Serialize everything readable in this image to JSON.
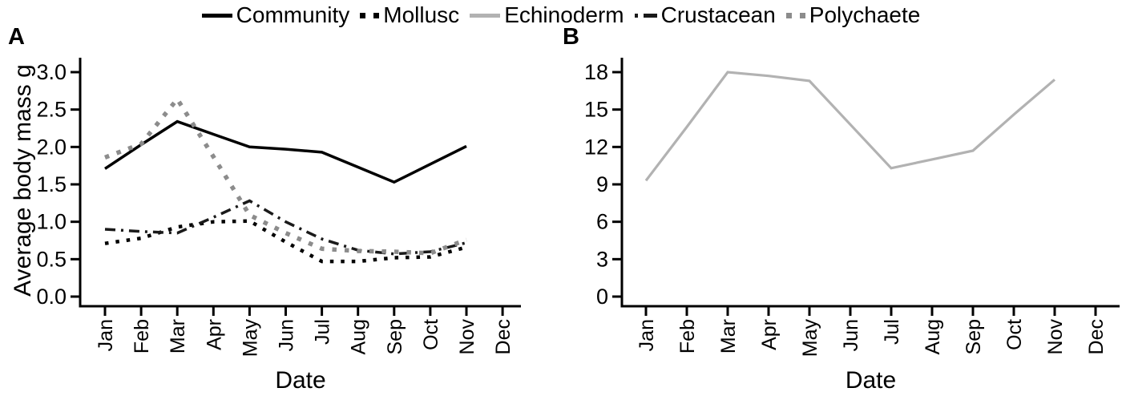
{
  "figure": {
    "legend": [
      {
        "id": "community",
        "label": "Community",
        "color": "#000000",
        "line_style": "solid"
      },
      {
        "id": "mollusc",
        "label": "Mollusc",
        "color": "#000000",
        "line_style": "dotted"
      },
      {
        "id": "echinoderm",
        "label": "Echinoderm",
        "color": "#b2b2b2",
        "line_style": "solid"
      },
      {
        "id": "crustacean",
        "label": "Crustacean",
        "color": "#1a1a1a",
        "line_style": "dashdot"
      },
      {
        "id": "polychaete",
        "label": "Polychaete",
        "color": "#8c8c8c",
        "line_style": "dotted"
      }
    ]
  },
  "chart_data": [
    {
      "panel": "A",
      "type": "line",
      "ylabel": "Average body mass g",
      "xlabel": "Date",
      "categories": [
        "Jan",
        "Feb",
        "Mar",
        "Apr",
        "May",
        "Jun",
        "Jul",
        "Aug",
        "Sep",
        "Oct",
        "Nov",
        "Dec"
      ],
      "yticks": [
        {
          "label": "0.0",
          "value": 0.0
        },
        {
          "label": "0.5",
          "value": 0.5
        },
        {
          "label": "1.0",
          "value": 1.0
        },
        {
          "label": "1.5",
          "value": 1.5
        },
        {
          "label": "2.0",
          "value": 2.0
        },
        {
          "label": "2.5",
          "value": 2.5
        },
        {
          "label": "3.0",
          "value": 3.0
        }
      ],
      "ylim": [
        0,
        3.0
      ],
      "grid": false,
      "legend_position": "top",
      "series": [
        {
          "id": "community",
          "name": "Community",
          "color": "#000000",
          "line_style": "solid",
          "values": [
            1.71,
            2.03,
            2.34,
            2.17,
            2.0,
            1.97,
            1.93,
            1.73,
            1.53,
            1.77,
            2.01,
            null
          ]
        },
        {
          "id": "mollusc",
          "name": "Mollusc",
          "color": "#000000",
          "line_style": "dotted",
          "values": [
            0.71,
            0.78,
            0.93,
            1.0,
            1.01,
            0.73,
            0.47,
            0.47,
            0.52,
            0.53,
            0.66,
            null
          ]
        },
        {
          "id": "crustacean",
          "name": "Crustacean",
          "color": "#1a1a1a",
          "line_style": "dashdot",
          "values": [
            0.9,
            0.87,
            0.85,
            1.06,
            1.28,
            1.0,
            0.77,
            0.62,
            0.57,
            0.6,
            0.72,
            null
          ]
        },
        {
          "id": "polychaete",
          "name": "Polychaete",
          "color": "#8c8c8c",
          "line_style": "dotted",
          "values": [
            1.86,
            2.04,
            2.64,
            1.87,
            1.09,
            0.85,
            0.64,
            0.61,
            0.6,
            0.58,
            0.76,
            null
          ]
        }
      ]
    },
    {
      "panel": "B",
      "type": "line",
      "ylabel": "",
      "xlabel": "Date",
      "categories": [
        "Jan",
        "Feb",
        "Mar",
        "Apr",
        "May",
        "Jun",
        "Jul",
        "Aug",
        "Sep",
        "Oct",
        "Nov",
        "Dec"
      ],
      "yticks": [
        {
          "label": "0",
          "value": 0
        },
        {
          "label": "3",
          "value": 3
        },
        {
          "label": "6",
          "value": 6
        },
        {
          "label": "9",
          "value": 9
        },
        {
          "label": "12",
          "value": 12
        },
        {
          "label": "15",
          "value": 15
        },
        {
          "label": "18",
          "value": 18
        }
      ],
      "ylim": [
        0,
        18
      ],
      "grid": false,
      "legend_position": "top",
      "series": [
        {
          "id": "echinoderm",
          "name": "Echinoderm",
          "color": "#b2b2b2",
          "line_style": "solid",
          "values": [
            9.3,
            13.6,
            18.0,
            17.7,
            17.3,
            13.8,
            10.3,
            11.0,
            11.7,
            14.6,
            17.4,
            null
          ]
        }
      ]
    }
  ]
}
